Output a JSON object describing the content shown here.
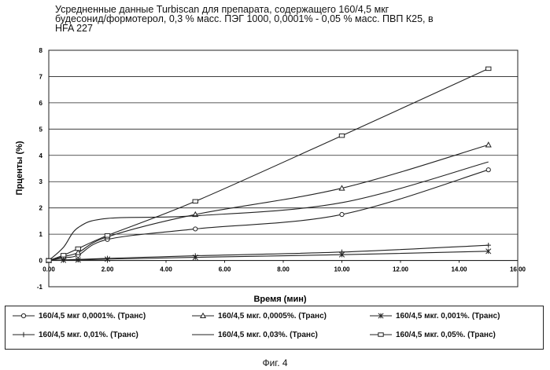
{
  "chart_data": {
    "type": "line",
    "title_lines": [
      "Усредненные данные Turbiscan для препарата, содержащего 160/4,5 мкг",
      "будесонид/формотерол, 0,3 % масс. ПЭГ 1000, 0,0001% - 0,05 % масс. ПВП К25, в",
      "HFA 227"
    ],
    "xlabel": "Время (мин)",
    "ylabel": "Прценты (%)",
    "xlim": [
      0,
      16
    ],
    "ylim": [
      -1,
      8
    ],
    "xticks": [
      "0.00",
      "2.00",
      "4.00",
      "6.00",
      "8.00",
      "10.00",
      "12.00",
      "14.00",
      "16.00"
    ],
    "yticks": [
      "-1",
      "0",
      "1",
      "2",
      "3",
      "4",
      "5",
      "6",
      "7",
      "8"
    ],
    "grid": "horizontal",
    "legend_position": "bottom",
    "series": [
      {
        "name": "160/4,5 мкг 0,0001%. (Транс)",
        "marker": "circle",
        "x": [
          0,
          0.5,
          1,
          2,
          5,
          10,
          15
        ],
        "y": [
          0,
          0.1,
          0.2,
          0.8,
          1.2,
          1.75,
          3.45
        ]
      },
      {
        "name": "160/4,5 мкг. 0,0005%. (Транс)",
        "marker": "triangle",
        "x": [
          0,
          0.5,
          1,
          2,
          5,
          10,
          15
        ],
        "y": [
          0,
          0.15,
          0.3,
          0.9,
          1.75,
          2.75,
          4.4
        ]
      },
      {
        "name": "160/4,5 мкг. 0,001%. (Транс)",
        "marker": "star",
        "x": [
          0,
          0.5,
          1,
          2,
          5,
          10,
          15
        ],
        "y": [
          0,
          0.01,
          0.02,
          0.05,
          0.12,
          0.22,
          0.35
        ]
      },
      {
        "name": "160/4,5 мкг. 0,01%. (Транс)",
        "marker": "plus",
        "x": [
          0,
          0.5,
          1,
          2,
          5,
          10,
          15
        ],
        "y": [
          0,
          0.02,
          0.04,
          0.08,
          0.18,
          0.32,
          0.58
        ]
      },
      {
        "name": "160/4,5 мкг. 0,03%. (Транс)",
        "marker": "none",
        "x": [
          0,
          0.5,
          1,
          2,
          5,
          10,
          15
        ],
        "y": [
          0,
          0.5,
          1.25,
          1.6,
          1.7,
          2.2,
          3.75
        ]
      },
      {
        "name": "160/4,5 мкг. 0,05%. (Транс)",
        "marker": "box",
        "x": [
          0,
          0.5,
          1,
          2,
          5,
          10,
          15
        ],
        "y": [
          0,
          0.2,
          0.45,
          0.95,
          2.25,
          4.75,
          7.3
        ]
      }
    ]
  },
  "caption": "Фиг. 4"
}
